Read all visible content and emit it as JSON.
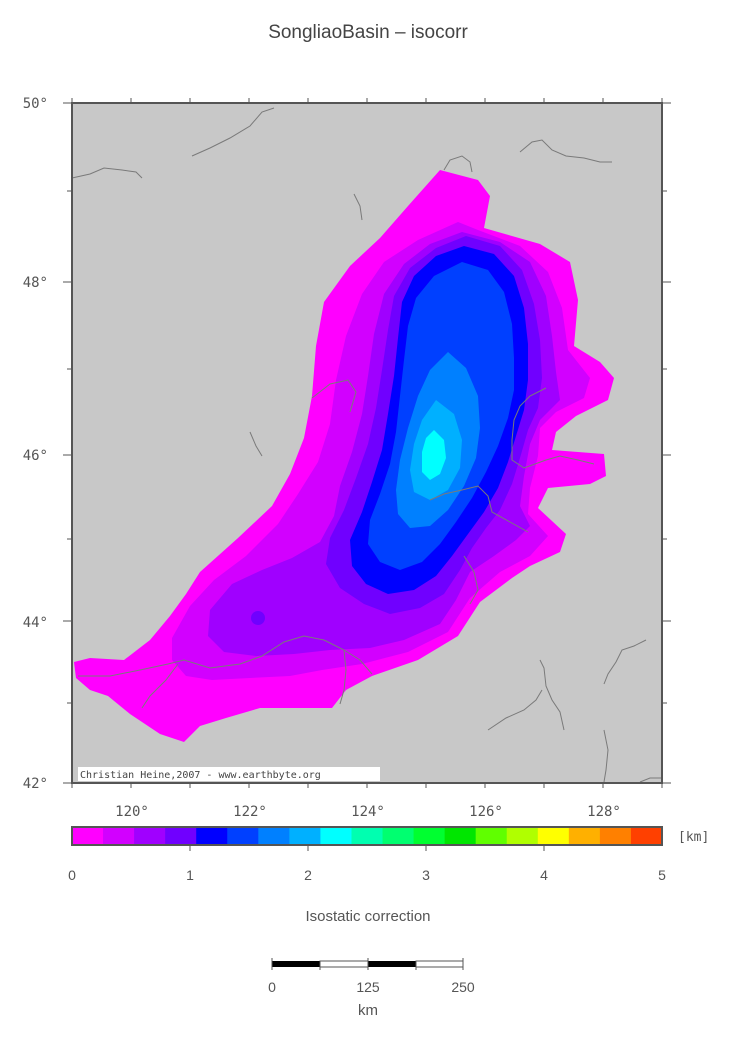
{
  "map": {
    "title": "SongliaoBasin – isocorr",
    "lat_ticks": [
      "50°",
      "48°",
      "46°",
      "44°",
      "42°"
    ],
    "lon_ticks": [
      "120°",
      "122°",
      "124°",
      "126°",
      "128°"
    ],
    "credit": "Christian Heine,2007 - www.earthbyte.org",
    "background_color": "#c8c8c8",
    "coastline_color": "#7a7a7a"
  },
  "colorbar": {
    "labels": [
      "0",
      "1",
      "2",
      "3",
      "4",
      "5"
    ],
    "unit": "[km]",
    "title": "Isostatic correction",
    "colors": [
      "#ff00ff",
      "#d200ff",
      "#a000ff",
      "#7000ff",
      "#0000ff",
      "#0040ff",
      "#0080ff",
      "#00b0ff",
      "#00ffff",
      "#00ffb0",
      "#00ff70",
      "#00ff30",
      "#00e600",
      "#60ff00",
      "#b0ff00",
      "#ffff00",
      "#ffb000",
      "#ff8000",
      "#ff4000"
    ]
  },
  "scalebar": {
    "labels": [
      "0",
      "125",
      "250"
    ],
    "unit": "km"
  }
}
